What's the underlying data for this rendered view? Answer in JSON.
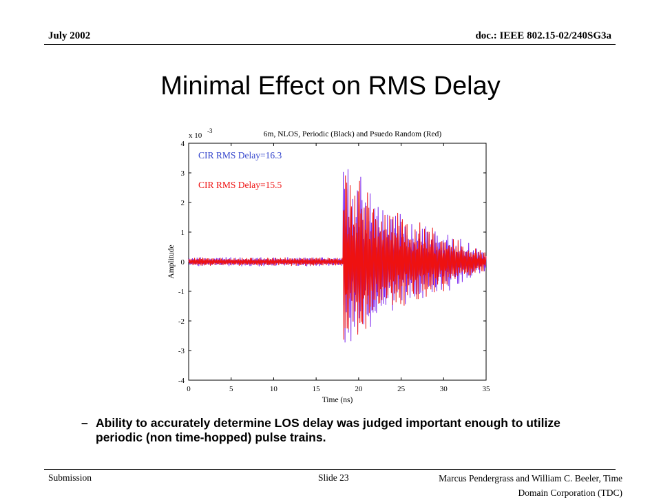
{
  "header": {
    "date": "July 2002",
    "doc_id": "doc.: IEEE 802.15-02/240SG3a"
  },
  "slide_title": "Minimal Effect on RMS Delay",
  "chart_data": {
    "type": "line",
    "title": "6m, NLOS, Periodic (Black) and Psuedo Random (Red)",
    "xlabel": "Time (ns)",
    "ylabel": "Amplitude",
    "y_multiplier_label": "x 10",
    "y_multiplier_exp": "-3",
    "xlim": [
      0,
      35
    ],
    "ylim": [
      -4,
      4
    ],
    "x_ticks": [
      "0",
      "5",
      "10",
      "15",
      "20",
      "25",
      "30",
      "35"
    ],
    "y_ticks": [
      "4",
      "3",
      "2",
      "1",
      "0",
      "-1",
      "-2",
      "-3",
      "-4"
    ],
    "annotations": [
      {
        "text": "CIR RMS Delay=16.3",
        "color": "#3344cc"
      },
      {
        "text": "CIR RMS Delay=15.5",
        "color": "#ee1111"
      }
    ],
    "series": [
      {
        "color": "#7a22ee"
      },
      {
        "color": "#ee1111"
      }
    ]
  },
  "bullet": {
    "dash": "–",
    "text": "Ability to accurately determine LOS delay was judged important enough to utilize periodic (non time-hopped) pulse trains."
  },
  "footer": {
    "left": "Submission",
    "center": "Slide 23",
    "right_line1": "Marcus Pendergrass and William  C. Beeler, Time",
    "right_line2": "Domain Corporation (TDC)"
  }
}
